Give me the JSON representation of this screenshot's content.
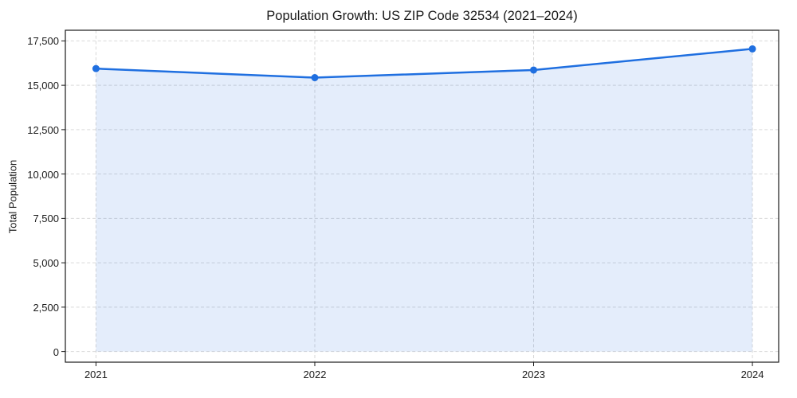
{
  "chart_data": {
    "type": "line",
    "title": "Population Growth: US ZIP Code 32534 (2021–2024)",
    "xlabel": "",
    "ylabel": "Total Population",
    "x": [
      2021,
      2022,
      2023,
      2024
    ],
    "x_tick_labels": [
      "2021",
      "2022",
      "2023",
      "2024"
    ],
    "series": [
      {
        "name": "Total Population",
        "values": [
          15940,
          15430,
          15860,
          17050
        ]
      }
    ],
    "area_fill": true,
    "area_baseline": 0,
    "markers": true,
    "y_ticks": {
      "values": [
        0,
        2500,
        5000,
        7500,
        10000,
        12500,
        15000,
        17500
      ],
      "labels": [
        "0",
        "2,500",
        "5,000",
        "7,500",
        "10,000",
        "12,500",
        "15,000",
        "17,500"
      ]
    },
    "xlim": [
      2020.86,
      2024.12
    ],
    "ylim": [
      -600,
      18100
    ],
    "grid": {
      "visible": true,
      "style": "dashed",
      "axes": "both"
    },
    "legend": "none",
    "colors": {
      "line": "#1f6fe0",
      "marker": "#1f6fe0",
      "fill": "#1f6fe0",
      "fill_opacity": 0.12,
      "grid": "#d9d9d9",
      "spine": "#1a1a1a",
      "text": "#1a1a1a",
      "background": "#ffffff"
    }
  }
}
